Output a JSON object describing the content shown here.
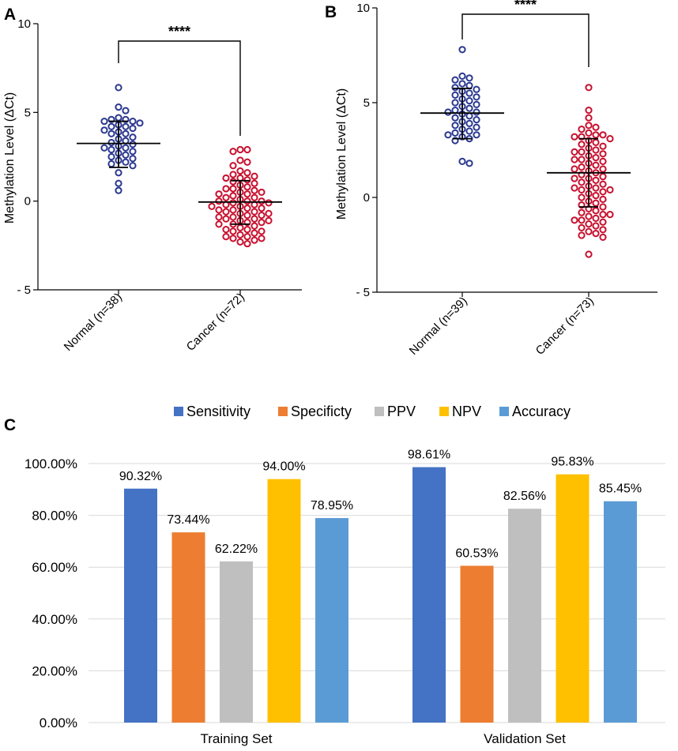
{
  "chart_data": [
    {
      "panel": "A",
      "type": "scatter",
      "ylabel": "Methylation Level (ΔCt)",
      "ylim": [
        -5,
        10
      ],
      "yticks": [
        "10",
        "5",
        "0",
        "- 5"
      ],
      "ytick_values": [
        10,
        5,
        0,
        -5
      ],
      "significance": "****",
      "groups": [
        {
          "label": "Normal (n=38)",
          "color": "#2b3990",
          "mean": 3.25,
          "sd_low": 1.9,
          "sd_high": 4.5,
          "values": [
            6.4,
            5.3,
            5.1,
            4.7,
            4.6,
            4.6,
            4.5,
            4.5,
            4.4,
            4.3,
            4.2,
            4.2,
            4.1,
            4.0,
            3.9,
            3.8,
            3.8,
            3.6,
            3.5,
            3.4,
            3.3,
            3.2,
            3.1,
            3.0,
            3.0,
            2.9,
            2.8,
            2.7,
            2.6,
            2.5,
            2.4,
            2.3,
            2.2,
            2.1,
            2.0,
            1.6,
            1.0,
            0.6
          ]
        },
        {
          "label": "Cancer (n=72)",
          "color": "#c8102e",
          "mean": -0.05,
          "sd_low": -1.3,
          "sd_high": 1.15,
          "values": [
            2.9,
            2.9,
            2.8,
            2.3,
            2.2,
            2.0,
            1.7,
            1.6,
            1.5,
            1.4,
            1.3,
            1.3,
            1.2,
            1.1,
            1.0,
            0.9,
            0.8,
            0.7,
            0.7,
            0.6,
            0.5,
            0.5,
            0.4,
            0.4,
            0.3,
            0.2,
            0.2,
            0.1,
            0.0,
            0.0,
            0.0,
            -0.1,
            -0.1,
            -0.2,
            -0.2,
            -0.3,
            -0.3,
            -0.4,
            -0.4,
            -0.5,
            -0.5,
            -0.6,
            -0.6,
            -0.7,
            -0.7,
            -0.8,
            -0.8,
            -0.9,
            -0.9,
            -1.0,
            -1.0,
            -1.1,
            -1.1,
            -1.2,
            -1.2,
            -1.3,
            -1.3,
            -1.4,
            -1.5,
            -1.6,
            -1.6,
            -1.7,
            -1.7,
            -1.8,
            -1.9,
            -2.0,
            -2.0,
            -2.1,
            -2.1,
            -2.2,
            -2.3,
            -2.4
          ]
        }
      ]
    },
    {
      "panel": "B",
      "type": "scatter",
      "ylabel": "Methylation Level (ΔCt)",
      "ylim": [
        -5,
        10
      ],
      "yticks": [
        "10",
        "5",
        "0",
        "- 5"
      ],
      "ytick_values": [
        10,
        5,
        0,
        -5
      ],
      "significance": "****",
      "groups": [
        {
          "label": "Normal (n=39)",
          "color": "#2b3990",
          "mean": 4.45,
          "sd_low": 3.1,
          "sd_high": 5.75,
          "values": [
            7.8,
            6.4,
            6.3,
            6.2,
            6.0,
            5.9,
            5.8,
            5.7,
            5.6,
            5.5,
            5.4,
            5.3,
            5.2,
            5.1,
            5.0,
            4.9,
            4.8,
            4.7,
            4.6,
            4.5,
            4.5,
            4.4,
            4.3,
            4.2,
            4.1,
            4.0,
            3.9,
            3.8,
            3.7,
            3.6,
            3.5,
            3.4,
            3.3,
            3.3,
            3.2,
            3.1,
            3.0,
            1.9,
            1.8
          ]
        },
        {
          "label": "Cancer (n=73)",
          "color": "#c8102e",
          "mean": 1.3,
          "sd_low": -0.5,
          "sd_high": 3.1,
          "values": [
            5.8,
            4.6,
            4.2,
            3.8,
            3.7,
            3.6,
            3.4,
            3.3,
            3.3,
            3.2,
            3.2,
            3.1,
            3.0,
            2.9,
            2.8,
            2.7,
            2.6,
            2.5,
            2.4,
            2.4,
            2.3,
            2.2,
            2.1,
            2.0,
            2.0,
            1.9,
            1.8,
            1.7,
            1.6,
            1.5,
            1.5,
            1.4,
            1.3,
            1.2,
            1.1,
            1.0,
            1.0,
            0.9,
            0.8,
            0.7,
            0.6,
            0.5,
            0.5,
            0.4,
            0.4,
            0.3,
            0.2,
            0.1,
            0.0,
            -0.1,
            -0.2,
            -0.3,
            -0.4,
            -0.5,
            -0.6,
            -0.7,
            -0.8,
            -0.9,
            -1.0,
            -1.1,
            -1.2,
            -1.3,
            -1.4,
            -1.5,
            -1.6,
            -1.7,
            -1.8,
            -1.9,
            -2.0,
            -2.1,
            -1.2,
            -0.9,
            -3.0
          ]
        }
      ]
    },
    {
      "panel": "C",
      "type": "bar",
      "categories": [
        "Training Set",
        "Validation Set"
      ],
      "ylim": [
        0,
        100
      ],
      "yticks": [
        "0.00%",
        "20.00%",
        "40.00%",
        "60.00%",
        "80.00%",
        "100.00%"
      ],
      "ytick_values": [
        0,
        20,
        40,
        60,
        80,
        100
      ],
      "grid": true,
      "legend": "top",
      "series": [
        {
          "name": "Sensitivity",
          "color": "#4472c4",
          "values": [
            90.32,
            98.61
          ],
          "labels": [
            "90.32%",
            "98.61%"
          ]
        },
        {
          "name": "Specificty",
          "color": "#ed7d31",
          "values": [
            73.44,
            60.53
          ],
          "labels": [
            "73.44%",
            "60.53%"
          ]
        },
        {
          "name": "PPV",
          "color": "#bfbfbf",
          "values": [
            62.22,
            82.56
          ],
          "labels": [
            "62.22%",
            "82.56%"
          ]
        },
        {
          "name": "NPV",
          "color": "#ffc000",
          "values": [
            94.0,
            95.83
          ],
          "labels": [
            "94.00%",
            "95.83%"
          ]
        },
        {
          "name": "Accuracy",
          "color": "#5b9bd5",
          "values": [
            78.95,
            85.45
          ],
          "labels": [
            "78.95%",
            "85.45%"
          ]
        }
      ]
    }
  ]
}
